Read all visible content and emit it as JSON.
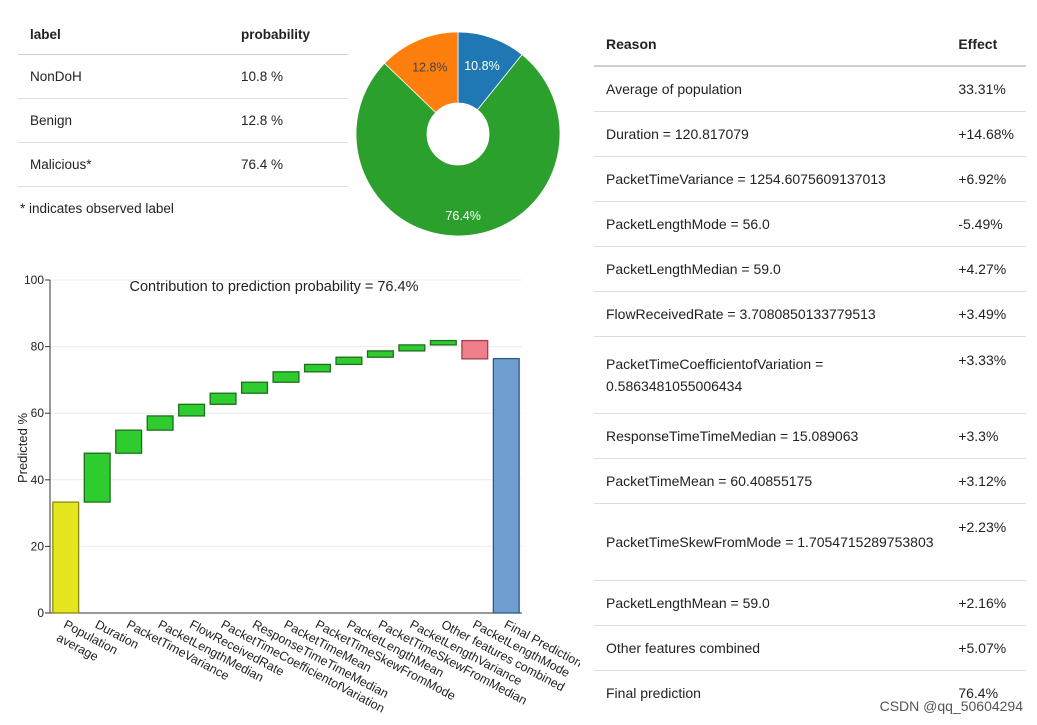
{
  "prob_table": {
    "headers": [
      "label",
      "probability"
    ],
    "rows": [
      {
        "label": "NonDoH",
        "probability": "10.8 %"
      },
      {
        "label": "Benign",
        "probability": "12.8 %"
      },
      {
        "label": "Malicious*",
        "probability": "76.4 %"
      }
    ],
    "note": "* indicates observed label"
  },
  "chart_data": [
    {
      "type": "pie",
      "hole": true,
      "slices": [
        {
          "label": "NonDoH",
          "value": 10.8,
          "text": "10.8%",
          "color": "#1f77b4"
        },
        {
          "label": "Malicious",
          "value": 76.4,
          "text": "76.4%",
          "color": "#2ca02c"
        },
        {
          "label": "Benign",
          "value": 12.8,
          "text": "12.8%",
          "color": "#ff7f0e"
        }
      ]
    },
    {
      "type": "bar",
      "subtype": "waterfall",
      "title": "Contribution to prediction probability = 76.4%",
      "ylabel": "Predicted %",
      "ylim": [
        0,
        100
      ],
      "yticks": [
        0,
        20,
        40,
        60,
        80,
        100
      ],
      "grid": true,
      "categories": [
        "Population average",
        "Duration",
        "PacketTimeVariance",
        "PacketLengthMedian",
        "FlowReceivedRate",
        "PacketTimeCoefficientofVariation",
        "ResponseTimeTimeMedian",
        "PacketTimeMean",
        "PacketTimeSkewFromMode",
        "PacketLengthMean",
        "PacketTimeSkewFromMedian",
        "PacketLengthVariance",
        "Other features combined",
        "PacketLengthMode",
        "Final Prediction"
      ],
      "bars": [
        {
          "base": 0,
          "value": 33.31,
          "kind": "total"
        },
        {
          "base": 33.31,
          "value": 14.68,
          "kind": "up"
        },
        {
          "base": 47.99,
          "value": 6.92,
          "kind": "up"
        },
        {
          "base": 54.91,
          "value": 4.27,
          "kind": "up"
        },
        {
          "base": 59.18,
          "value": 3.49,
          "kind": "up"
        },
        {
          "base": 62.67,
          "value": 3.33,
          "kind": "up"
        },
        {
          "base": 66.0,
          "value": 3.3,
          "kind": "up"
        },
        {
          "base": 69.3,
          "value": 3.12,
          "kind": "up"
        },
        {
          "base": 72.42,
          "value": 2.23,
          "kind": "up"
        },
        {
          "base": 74.65,
          "value": 2.16,
          "kind": "up"
        },
        {
          "base": 76.81,
          "value": 1.9,
          "kind": "up"
        },
        {
          "base": 78.71,
          "value": 1.8,
          "kind": "up"
        },
        {
          "base": 80.51,
          "value": 1.3,
          "kind": "up"
        },
        {
          "base": 81.81,
          "value": -5.49,
          "kind": "down"
        },
        {
          "base": 0,
          "value": 76.4,
          "kind": "final"
        }
      ],
      "colors": {
        "total": "#e6e620",
        "up": "#2ecc2e",
        "down": "#ef7f8c",
        "final": "#6e9fd0"
      }
    }
  ],
  "reason_table": {
    "headers": [
      "Reason",
      "Effect"
    ],
    "rows": [
      {
        "reason": "Average of population",
        "effect": "33.31%"
      },
      {
        "reason": "Duration = 120.817079",
        "effect": "+14.68%"
      },
      {
        "reason": "PacketTimeVariance = 1254.6075609137013",
        "effect": "+6.92%"
      },
      {
        "reason": "PacketLengthMode = 56.0",
        "effect": "-5.49%"
      },
      {
        "reason": "PacketLengthMedian = 59.0",
        "effect": "+4.27%"
      },
      {
        "reason": "FlowReceivedRate = 3.7080850133779513",
        "effect": "+3.49%"
      },
      {
        "reason": "PacketTimeCoefficientofVariation = 0.5863481055006434",
        "effect": "+3.33%"
      },
      {
        "reason": "ResponseTimeTimeMedian = 15.089063",
        "effect": "+3.3%"
      },
      {
        "reason": "PacketTimeMean = 60.40855175",
        "effect": "+3.12%"
      },
      {
        "reason": "PacketTimeSkewFromMode = 1.7054715289753803",
        "effect": "+2.23%"
      },
      {
        "reason": "PacketLengthMean = 59.0",
        "effect": "+2.16%"
      },
      {
        "reason": "Other features combined",
        "effect": "+5.07%"
      },
      {
        "reason": "Final prediction",
        "effect": "76.4%"
      }
    ]
  },
  "watermark": "CSDN @qq_50604294"
}
